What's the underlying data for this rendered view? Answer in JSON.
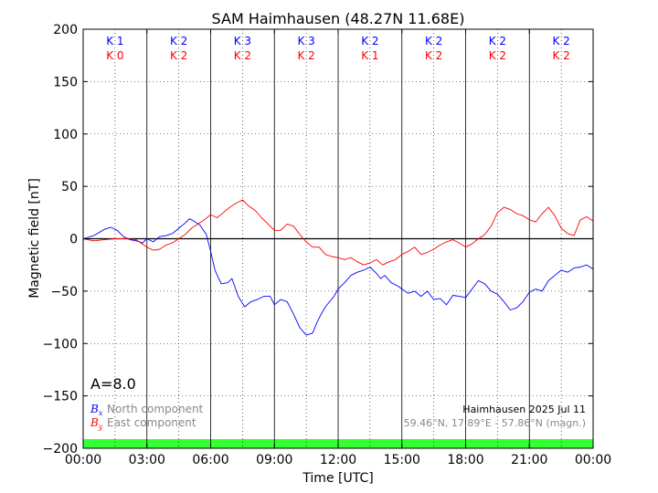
{
  "chart_data": {
    "type": "line",
    "title": "SAM Haimhausen (48.27N 11.68E)",
    "xlabel": "Time [UTC]",
    "ylabel": "Magnetic field [nT]",
    "ylim": [
      -200,
      200
    ],
    "xlim_hours": [
      0,
      24
    ],
    "x_tick_labels": [
      "00:00",
      "03:00",
      "06:00",
      "09:00",
      "12:00",
      "15:00",
      "18:00",
      "21:00",
      "00:00"
    ],
    "y_tick_labels": [
      "200",
      "150",
      "100",
      "50",
      "0",
      "−50",
      "−100",
      "−150",
      "−200"
    ],
    "grid": true,
    "k_index": {
      "x_label": "K",
      "y_label": "K",
      "x_values": [
        1,
        2,
        3,
        3,
        2,
        2,
        2,
        2
      ],
      "y_values": [
        0,
        2,
        2,
        2,
        1,
        2,
        2,
        2
      ]
    },
    "a_index_text": "A=8.0",
    "legend": {
      "bx_symbol": "B",
      "bx_sub": "x",
      "bx_label": "North component",
      "by_symbol": "B",
      "by_sub": "y",
      "by_label": "East component"
    },
    "info": {
      "line1": "Haimhausen 2025 Jul 11",
      "line2": "59.46°N, 17.89°E - 57.86°N (magn.)"
    },
    "series": [
      {
        "name": "North component",
        "color": "#0000ff",
        "x": [
          0,
          0.5,
          1,
          1.3,
          1.6,
          1.9,
          2.2,
          2.5,
          2.8,
          3.0,
          3.3,
          3.6,
          3.9,
          4.2,
          4.5,
          4.8,
          5.0,
          5.2,
          5.5,
          5.8,
          6.0,
          6.2,
          6.5,
          6.8,
          7.0,
          7.3,
          7.6,
          7.9,
          8.2,
          8.5,
          8.8,
          9.0,
          9.3,
          9.6,
          9.9,
          10.2,
          10.5,
          10.8,
          11.0,
          11.2,
          11.4,
          11.6,
          11.8,
          12.0,
          12.3,
          12.6,
          12.9,
          13.2,
          13.5,
          13.8,
          14.0,
          14.2,
          14.5,
          14.8,
          15.0,
          15.3,
          15.6,
          15.9,
          16.2,
          16.5,
          16.8,
          17.1,
          17.4,
          17.7,
          18.0,
          18.3,
          18.6,
          18.9,
          19.2,
          19.5,
          19.8,
          20.1,
          20.4,
          20.7,
          21.0,
          21.3,
          21.6,
          21.9,
          22.2,
          22.5,
          22.8,
          23.1,
          23.4,
          23.7,
          24.0
        ],
        "values": [
          0,
          3,
          9,
          11,
          8,
          2,
          -1,
          -2,
          -4,
          0,
          -3,
          2,
          3,
          5,
          10,
          15,
          19,
          17,
          13,
          4,
          -12,
          -30,
          -43,
          -42,
          -38,
          -55,
          -65,
          -60,
          -58,
          -55,
          -55,
          -63,
          -58,
          -60,
          -72,
          -85,
          -92,
          -90,
          -80,
          -72,
          -65,
          -60,
          -55,
          -48,
          -42,
          -35,
          -32,
          -30,
          -27,
          -33,
          -38,
          -35,
          -42,
          -45,
          -48,
          -52,
          -50,
          -55,
          -50,
          -58,
          -57,
          -63,
          -54,
          -55,
          -56,
          -48,
          -40,
          -43,
          -50,
          -53,
          -60,
          -68,
          -66,
          -60,
          -51,
          -48,
          -50,
          -40,
          -35,
          -30,
          -32,
          -28,
          -27,
          -25,
          -29
        ]
      },
      {
        "name": "East component",
        "color": "#ff0000",
        "x": [
          0,
          0.5,
          1,
          1.5,
          2.0,
          2.5,
          3.0,
          3.3,
          3.6,
          3.9,
          4.2,
          4.5,
          4.8,
          5.1,
          5.4,
          5.7,
          6.0,
          6.3,
          6.6,
          6.9,
          7.2,
          7.5,
          7.8,
          8.1,
          8.4,
          8.7,
          9.0,
          9.3,
          9.6,
          9.9,
          10.2,
          10.5,
          10.8,
          11.1,
          11.4,
          11.7,
          12.0,
          12.3,
          12.6,
          12.9,
          13.2,
          13.5,
          13.8,
          14.1,
          14.4,
          14.7,
          15.0,
          15.3,
          15.6,
          15.9,
          16.2,
          16.5,
          16.8,
          17.1,
          17.4,
          17.7,
          18.0,
          18.3,
          18.6,
          18.9,
          19.2,
          19.5,
          19.8,
          20.1,
          20.4,
          20.7,
          21.0,
          21.3,
          21.6,
          21.9,
          22.2,
          22.5,
          22.8,
          23.1,
          23.4,
          23.7,
          24.0
        ],
        "values": [
          0,
          -2,
          -1,
          0,
          0,
          -1,
          -8,
          -11,
          -10,
          -6,
          -4,
          0,
          4,
          10,
          14,
          18,
          23,
          20,
          25,
          30,
          34,
          37,
          31,
          27,
          20,
          14,
          8,
          8,
          14,
          12,
          4,
          -3,
          -8,
          -8,
          -15,
          -17,
          -18,
          -20,
          -18,
          -22,
          -25,
          -23,
          -20,
          -25,
          -22,
          -20,
          -15,
          -12,
          -8,
          -15,
          -13,
          -10,
          -6,
          -3,
          -1,
          -4,
          -8,
          -5,
          0,
          4,
          12,
          25,
          30,
          28,
          24,
          22,
          18,
          16,
          24,
          30,
          22,
          10,
          5,
          3,
          18,
          21,
          17
        ]
      }
    ]
  }
}
